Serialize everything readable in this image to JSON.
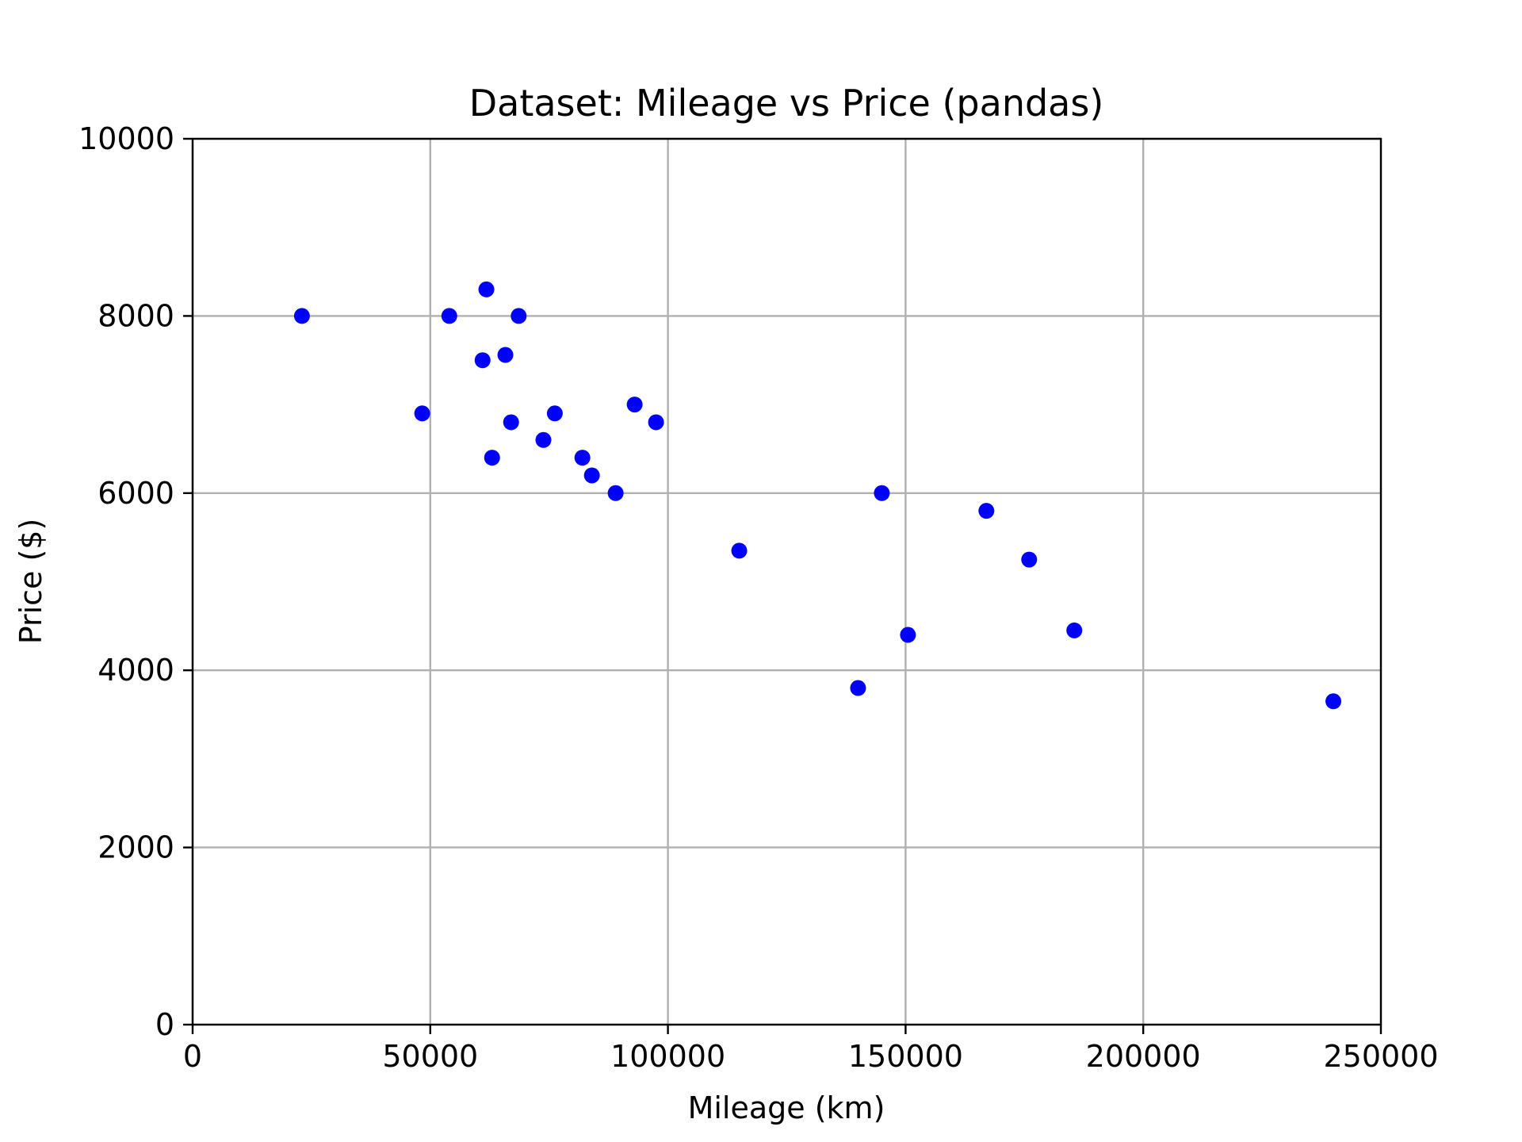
{
  "chart_data": {
    "type": "scatter",
    "title": "Dataset: Mileage vs Price (pandas)",
    "xlabel": "Mileage (km)",
    "ylabel": "Price ($)",
    "xlim": [
      0,
      250000
    ],
    "ylim": [
      0,
      10000
    ],
    "xticks": [
      0,
      50000,
      100000,
      150000,
      200000,
      250000
    ],
    "yticks": [
      0,
      2000,
      4000,
      6000,
      8000,
      10000
    ],
    "grid": true,
    "marker_color": "#0000ff",
    "series": [
      {
        "x": [
          23000,
          48300,
          54000,
          61000,
          61800,
          63000,
          65800,
          67000,
          68600,
          73800,
          76200,
          82000,
          84000,
          89000,
          93000,
          97500,
          115000,
          140000,
          145000,
          150500,
          167000,
          176000,
          185500,
          240000
        ],
        "y": [
          8000,
          6900,
          8000,
          7500,
          8300,
          6400,
          7560,
          6800,
          8000,
          6600,
          6900,
          6400,
          6200,
          6000,
          7000,
          6800,
          5350,
          3800,
          6000,
          4400,
          5800,
          5250,
          4450,
          3650
        ]
      }
    ]
  }
}
